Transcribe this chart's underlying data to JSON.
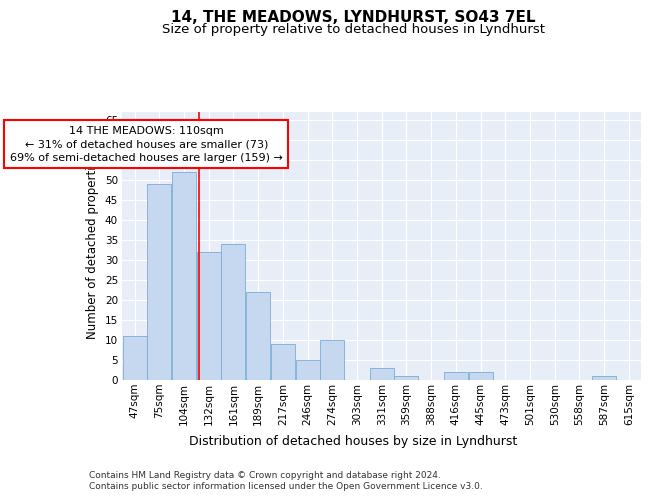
{
  "title": "14, THE MEADOWS, LYNDHURST, SO43 7EL",
  "subtitle": "Size of property relative to detached houses in Lyndhurst",
  "xlabel_bottom": "Distribution of detached houses by size in Lyndhurst",
  "ylabel": "Number of detached properties",
  "footer1": "Contains HM Land Registry data © Crown copyright and database right 2024.",
  "footer2": "Contains public sector information licensed under the Open Government Licence v3.0.",
  "bar_labels": [
    "47sqm",
    "75sqm",
    "104sqm",
    "132sqm",
    "161sqm",
    "189sqm",
    "217sqm",
    "246sqm",
    "274sqm",
    "303sqm",
    "331sqm",
    "359sqm",
    "388sqm",
    "416sqm",
    "445sqm",
    "473sqm",
    "501sqm",
    "530sqm",
    "558sqm",
    "587sqm",
    "615sqm"
  ],
  "bar_values": [
    11,
    49,
    52,
    32,
    34,
    22,
    9,
    5,
    10,
    0,
    3,
    1,
    0,
    2,
    2,
    0,
    0,
    0,
    0,
    1,
    0
  ],
  "bar_color": "#c5d8f0",
  "bar_edgecolor": "#7aadd4",
  "background_color": "#e8eef8",
  "grid_color": "#ffffff",
  "red_line_x": 2.62,
  "annotation_text": "14 THE MEADOWS: 110sqm\n← 31% of detached houses are smaller (73)\n69% of semi-detached houses are larger (159) →",
  "ylim": [
    0,
    67
  ],
  "yticks": [
    0,
    5,
    10,
    15,
    20,
    25,
    30,
    35,
    40,
    45,
    50,
    55,
    60,
    65
  ],
  "title_fontsize": 11,
  "subtitle_fontsize": 9.5,
  "tick_fontsize": 7.5,
  "ylabel_fontsize": 8.5,
  "xlabel_fontsize": 9,
  "annotation_fontsize": 8,
  "footer_fontsize": 6.5
}
